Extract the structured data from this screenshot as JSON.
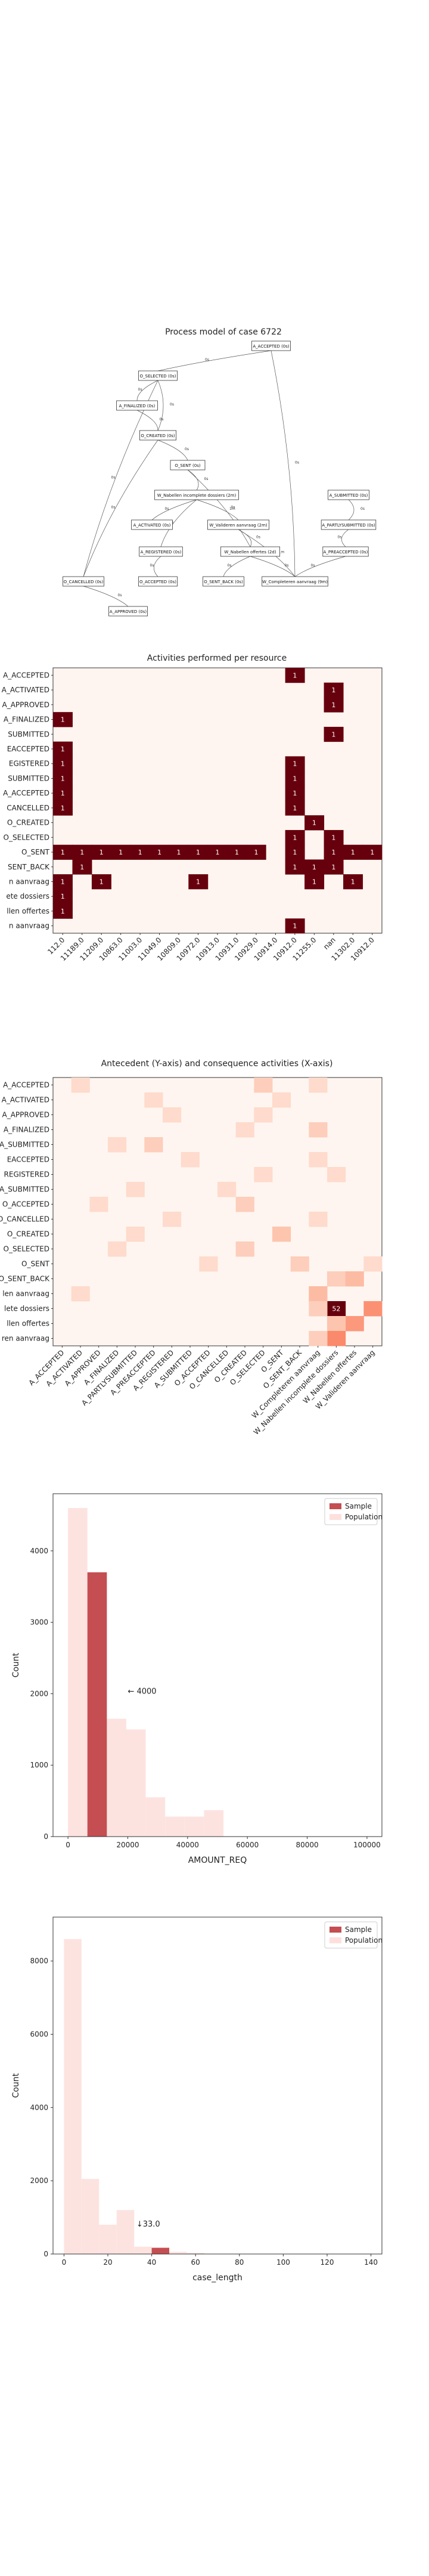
{
  "process_model": {
    "title": "Process model of case 6722",
    "nodes": [
      {
        "id": "n1",
        "label": "A_ACCEPTED (0s)"
      },
      {
        "id": "n2",
        "label": "O_SELECTED (0s)"
      },
      {
        "id": "n3",
        "label": "A_FINALIZED (0s)"
      },
      {
        "id": "n4",
        "label": "O_CREATED (0s)"
      },
      {
        "id": "n5",
        "label": "O_SENT (0s)"
      },
      {
        "id": "n6",
        "label": "W_Nabellen incomplete dossiers (2m)"
      },
      {
        "id": "n7",
        "label": "A_SUBMITTED (0s)"
      },
      {
        "id": "n8",
        "label": "A_ACTIVATED (0s)"
      },
      {
        "id": "n9",
        "label": "W_Valideren aanvraag (2m)"
      },
      {
        "id": "n10",
        "label": "A_PARTLYSUBMITTED (0s)"
      },
      {
        "id": "n11",
        "label": "A_REGISTERED (0s)"
      },
      {
        "id": "n12",
        "label": "W_Nabellen offertes (2d)"
      },
      {
        "id": "n13",
        "label": "A_PREACCEPTED (0s)"
      },
      {
        "id": "n14",
        "label": "O_CANCELLED (0s)"
      },
      {
        "id": "n15",
        "label": "O_ACCEPTED (0s)"
      },
      {
        "id": "n16",
        "label": "O_SENT_BACK (0s)"
      },
      {
        "id": "n17",
        "label": "W_Completeren aanvraag (9m)"
      },
      {
        "id": "n18",
        "label": "A_APPROVED (0s)"
      }
    ],
    "edges": [
      {
        "from": "n1",
        "to": "n2",
        "label": "0s"
      },
      {
        "from": "n2",
        "to": "n3",
        "label": "0s"
      },
      {
        "from": "n3",
        "to": "n4",
        "label": "0s"
      },
      {
        "from": "n2",
        "to": "n4",
        "label": "0s"
      },
      {
        "from": "n4",
        "to": "n5",
        "label": "0s"
      },
      {
        "from": "n5",
        "to": "n6",
        "label": "0s"
      },
      {
        "from": "n5",
        "to": "n12",
        "label": "0s"
      },
      {
        "from": "n6",
        "to": "n8",
        "label": "0s"
      },
      {
        "from": "n6",
        "to": "n11",
        "label": "0s"
      },
      {
        "from": "n6",
        "to": "n9",
        "label": "1m"
      },
      {
        "from": "n9",
        "to": "n12",
        "label": "0s"
      },
      {
        "from": "n12",
        "to": "n16",
        "label": "0s"
      },
      {
        "from": "n12",
        "to": "n17",
        "label": "0s"
      },
      {
        "from": "n7",
        "to": "n10",
        "label": "0s"
      },
      {
        "from": "n10",
        "to": "n13",
        "label": "0s"
      },
      {
        "from": "n13",
        "to": "n17",
        "label": "0s"
      },
      {
        "from": "n11",
        "to": "n15",
        "label": "0s"
      },
      {
        "from": "n14",
        "to": "n18",
        "label": "0s"
      },
      {
        "from": "n2",
        "to": "n14",
        "label": "0s"
      },
      {
        "from": "n4",
        "to": "n14",
        "label": "0s"
      },
      {
        "from": "n1",
        "to": "n17",
        "label": "0s"
      },
      {
        "from": "n9",
        "to": "n17",
        "label": "1m"
      }
    ]
  },
  "chart_data": [
    {
      "type": "heatmap",
      "title": "Activities performed per resource",
      "y_categories": [
        "A_ACCEPTED",
        "A_ACTIVATED",
        "A_APPROVED",
        "A_FINALIZED",
        "A_PARTLYSUBMITTED",
        "A_PREACCEPTED",
        "A_REGISTERED",
        "A_SUBMITTED",
        "O_ACCEPTED",
        "O_CANCELLED",
        "O_CREATED",
        "O_SELECTED",
        "O_SENT",
        "O_SENT_BACK",
        "W_Completeren aanvraag",
        "W_Nabellen incomplete dossiers",
        "W_Nabellen offertes",
        "W_Valideren aanvraag"
      ],
      "y_tick_labels": [
        "A_ACCEPTED",
        "A_ACTIVATED",
        "A_APPROVED",
        "A_FINALIZED",
        "SUBMITTED",
        "EACCEPTED",
        "EGISTERED",
        "SUBMITTED",
        "A_ACCEPTED",
        "CANCELLED",
        "O_CREATED",
        "O_SELECTED",
        "O_SENT",
        "SENT_BACK",
        "n aanvraag",
        "ete dossiers",
        "llen offertes",
        "n aanvraag"
      ],
      "x_categories": [
        "112.0",
        "11189.0",
        "11209.0",
        "10863.0",
        "11003.0",
        "11049.0",
        "10809.0",
        "10972.0",
        "10913.0",
        "10931.0",
        "10929.0",
        "10914.0",
        "10912.0",
        "11255.0",
        "nan",
        "11302.0",
        "10912.0"
      ],
      "cells": [
        {
          "r": 0,
          "c": 12,
          "v": 1
        },
        {
          "r": 1,
          "c": 14,
          "v": 1
        },
        {
          "r": 2,
          "c": 14,
          "v": 1
        },
        {
          "r": 3,
          "c": 0,
          "v": 1
        },
        {
          "r": 4,
          "c": 14,
          "v": 1
        },
        {
          "r": 5,
          "c": 0,
          "v": 1
        },
        {
          "r": 6,
          "c": 0,
          "v": 1
        },
        {
          "r": 6,
          "c": 12,
          "v": 1
        },
        {
          "r": 7,
          "c": 0,
          "v": 1
        },
        {
          "r": 7,
          "c": 12,
          "v": 1
        },
        {
          "r": 8,
          "c": 0,
          "v": 1
        },
        {
          "r": 8,
          "c": 12,
          "v": 1
        },
        {
          "r": 9,
          "c": 0,
          "v": 1
        },
        {
          "r": 9,
          "c": 12,
          "v": 1
        },
        {
          "r": 10,
          "c": 13,
          "v": 1
        },
        {
          "r": 11,
          "c": 12,
          "v": 1
        },
        {
          "r": 11,
          "c": 14,
          "v": 1
        },
        {
          "r": 12,
          "c": 0,
          "v": 1
        },
        {
          "r": 12,
          "c": 1,
          "v": 1
        },
        {
          "r": 12,
          "c": 2,
          "v": 1
        },
        {
          "r": 12,
          "c": 3,
          "v": 1
        },
        {
          "r": 12,
          "c": 4,
          "v": 1
        },
        {
          "r": 12,
          "c": 5,
          "v": 1
        },
        {
          "r": 12,
          "c": 6,
          "v": 1
        },
        {
          "r": 12,
          "c": 7,
          "v": 1
        },
        {
          "r": 12,
          "c": 8,
          "v": 1
        },
        {
          "r": 12,
          "c": 9,
          "v": 1
        },
        {
          "r": 12,
          "c": 10,
          "v": 1
        },
        {
          "r": 12,
          "c": 12,
          "v": 1
        },
        {
          "r": 12,
          "c": 14,
          "v": 1
        },
        {
          "r": 12,
          "c": 15,
          "v": 1
        },
        {
          "r": 12,
          "c": 16,
          "v": 1
        },
        {
          "r": 13,
          "c": 1,
          "v": 1
        },
        {
          "r": 13,
          "c": 12,
          "v": 1
        },
        {
          "r": 13,
          "c": 13,
          "v": 1
        },
        {
          "r": 13,
          "c": 14,
          "v": 1
        },
        {
          "r": 14,
          "c": 0,
          "v": 1
        },
        {
          "r": 14,
          "c": 2,
          "v": 1
        },
        {
          "r": 14,
          "c": 7,
          "v": 1
        },
        {
          "r": 14,
          "c": 13,
          "v": 1
        },
        {
          "r": 14,
          "c": 15,
          "v": 1
        },
        {
          "r": 15,
          "c": 0,
          "v": 1
        },
        {
          "r": 16,
          "c": 0,
          "v": 1
        },
        {
          "r": 17,
          "c": 12,
          "v": 1
        }
      ]
    },
    {
      "type": "heatmap",
      "title": "Antecedent (Y-axis) and consequence activities (X-axis)",
      "y_categories": [
        "A_ACCEPTED",
        "A_ACTIVATED",
        "A_APPROVED",
        "A_FINALIZED",
        "A_PARTLYSUBMITTED",
        "A_PREACCEPTED",
        "A_REGISTERED",
        "A_SUBMITTED",
        "O_ACCEPTED",
        "O_CANCELLED",
        "O_CREATED",
        "O_SELECTED",
        "O_SENT",
        "O_SENT_BACK",
        "W_Completeren aanvraag",
        "W_Nabellen incomplete dossiers",
        "W_Nabellen offertes",
        "W_Valideren aanvraag"
      ],
      "y_tick_labels": [
        "A_ACCEPTED",
        "A_ACTIVATED",
        "A_APPROVED",
        "A_FINALIZED",
        "A_SUBMITTED",
        "EACCEPTED",
        "REGISTERED",
        "A_SUBMITTED",
        "O_ACCEPTED",
        "O_CANCELLED",
        "O_CREATED",
        "O_SELECTED",
        "O_SENT",
        "O_SENT_BACK",
        "len aanvraag",
        "lete dossiers",
        "llen offertes",
        "ren aanvraag"
      ],
      "x_categories": [
        "A_ACCEPTED",
        "A_ACTIVATED",
        "A_APPROVED",
        "A_FINALIZED",
        "A_PARTLYSUBMITTED",
        "A_PREACCEPTED",
        "A_REGISTERED",
        "A_SUBMITTED",
        "O_ACCEPTED",
        "O_CANCELLED",
        "O_CREATED",
        "O_SELECTED",
        "O_SENT",
        "O_SENT_BACK",
        "W_Completeren aanvraag",
        "W_Nabellen incomplete dossiers",
        "W_Nabellen offertes",
        "W_Valideren aanvraag"
      ],
      "x_tick_labels": [
        "A_ACCEPTED",
        "A_ACTIVATED",
        "A_APPROVED",
        "A_FINALIZED",
        "A_PARTLYSUBMITTED",
        "A_PREACCEPTED",
        "A_REGISTERED",
        "A_SUBMITTED",
        "O_ACCEPTED",
        "O_CANCELLED",
        "O_CREATED",
        "O_SELECTED",
        "O_SENT",
        "O_SENT_BACK",
        "W_Completeren aanvraag",
        "W_Nabellen incomplete dossiers",
        "W_Nabellen offertes",
        "W_Valideren aanvraag"
      ],
      "max_value": 52,
      "cells": [
        {
          "r": 0,
          "c": 1,
          "v": 1
        },
        {
          "r": 0,
          "c": 11,
          "v": 2
        },
        {
          "r": 0,
          "c": 14,
          "v": 1
        },
        {
          "r": 1,
          "c": 5,
          "v": 1
        },
        {
          "r": 1,
          "c": 12,
          "v": 1
        },
        {
          "r": 2,
          "c": 6,
          "v": 1
        },
        {
          "r": 2,
          "c": 11,
          "v": 1
        },
        {
          "r": 3,
          "c": 10,
          "v": 1
        },
        {
          "r": 3,
          "c": 14,
          "v": 2
        },
        {
          "r": 4,
          "c": 5,
          "v": 2
        },
        {
          "r": 4,
          "c": 3,
          "v": 1
        },
        {
          "r": 5,
          "c": 7,
          "v": 1
        },
        {
          "r": 5,
          "c": 14,
          "v": 1
        },
        {
          "r": 6,
          "c": 11,
          "v": 1
        },
        {
          "r": 6,
          "c": 15,
          "v": 1
        },
        {
          "r": 7,
          "c": 4,
          "v": 1
        },
        {
          "r": 7,
          "c": 9,
          "v": 1
        },
        {
          "r": 8,
          "c": 2,
          "v": 1
        },
        {
          "r": 8,
          "c": 10,
          "v": 2
        },
        {
          "r": 9,
          "c": 6,
          "v": 1
        },
        {
          "r": 9,
          "c": 14,
          "v": 1
        },
        {
          "r": 10,
          "c": 12,
          "v": 3
        },
        {
          "r": 10,
          "c": 4,
          "v": 1
        },
        {
          "r": 11,
          "c": 3,
          "v": 1
        },
        {
          "r": 11,
          "c": 10,
          "v": 2
        },
        {
          "r": 12,
          "c": 8,
          "v": 1
        },
        {
          "r": 12,
          "c": 13,
          "v": 2
        },
        {
          "r": 12,
          "c": 17,
          "v": 1
        },
        {
          "r": 13,
          "c": 15,
          "v": 2
        },
        {
          "r": 13,
          "c": 16,
          "v": 4
        },
        {
          "r": 14,
          "c": 14,
          "v": 4
        },
        {
          "r": 14,
          "c": 1,
          "v": 1
        },
        {
          "r": 15,
          "c": 15,
          "v": 52
        },
        {
          "r": 15,
          "c": 17,
          "v": 9
        },
        {
          "r": 15,
          "c": 14,
          "v": 2
        },
        {
          "r": 16,
          "c": 16,
          "v": 8
        },
        {
          "r": 16,
          "c": 15,
          "v": 3
        },
        {
          "r": 17,
          "c": 15,
          "v": 10
        },
        {
          "r": 17,
          "c": 14,
          "v": 2
        }
      ]
    },
    {
      "type": "bar",
      "title": "",
      "xlabel": "AMOUNT_REQ",
      "ylabel": "Count",
      "xlim": [
        -5000,
        105000
      ],
      "ylim": [
        0,
        4800
      ],
      "x_ticks": [
        0,
        20000,
        40000,
        60000,
        80000,
        100000
      ],
      "y_ticks": [
        0,
        1000,
        2000,
        3000,
        4000
      ],
      "bin_edges": [
        0,
        6500,
        13000,
        19500,
        26000,
        32500,
        39000,
        45500,
        52000,
        58500,
        65000
      ],
      "series": [
        {
          "name": "Sample",
          "values": [
            0,
            3700,
            0,
            0,
            0,
            0,
            0,
            0,
            0,
            0
          ]
        },
        {
          "name": "Population",
          "values": [
            4600,
            3700,
            1650,
            1500,
            550,
            280,
            280,
            370,
            0,
            0
          ]
        }
      ],
      "annotation": "← 4000",
      "annotation_x": 20000,
      "annotation_y": 2000,
      "legend": "top-right"
    },
    {
      "type": "bar",
      "title": "",
      "xlabel": "case_length",
      "ylabel": "Count",
      "xlim": [
        -5,
        145
      ],
      "ylim": [
        0,
        9200
      ],
      "x_ticks": [
        0,
        20,
        40,
        60,
        80,
        100,
        120,
        140
      ],
      "y_ticks": [
        0,
        2000,
        4000,
        6000,
        8000
      ],
      "bin_edges": [
        0,
        8,
        16,
        24,
        32,
        40,
        48,
        56,
        64
      ],
      "series": [
        {
          "name": "Sample",
          "values": [
            0,
            0,
            0,
            0,
            0,
            170,
            0,
            0
          ]
        },
        {
          "name": "Population",
          "values": [
            8600,
            2050,
            800,
            1200,
            200,
            170,
            60,
            30
          ]
        }
      ],
      "annotation": "↓33.0",
      "annotation_x": 33,
      "annotation_y": 750,
      "legend": "top-right"
    }
  ],
  "colors": {
    "heat_high": "#67000d",
    "heat_low": "#fff5f0",
    "sample": "#c44e52",
    "population": "#fde0dd"
  }
}
